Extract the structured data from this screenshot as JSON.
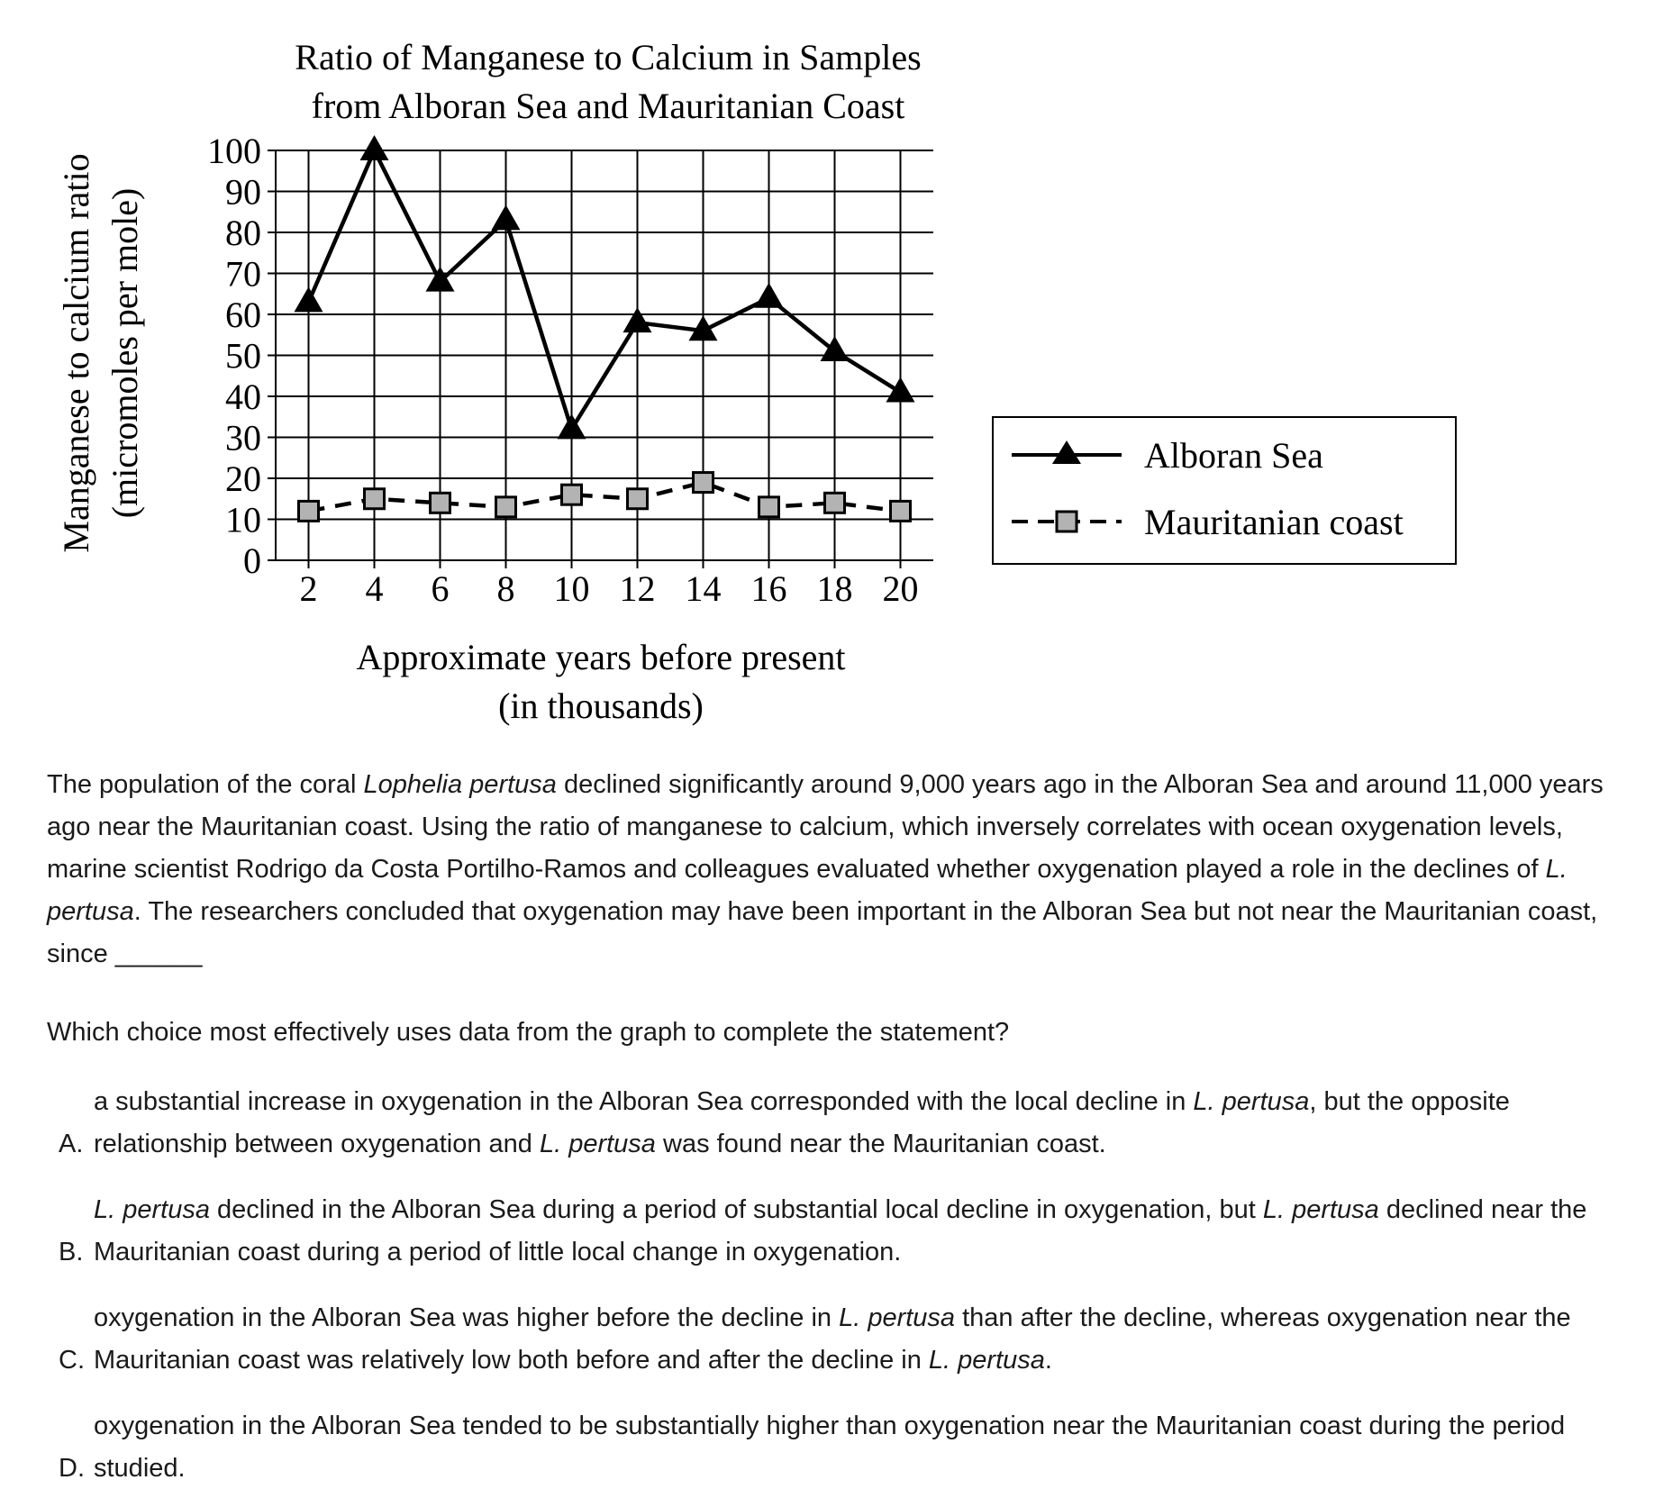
{
  "chart_data": {
    "type": "line",
    "title": [
      "Ratio of Manganese to Calcium in Samples",
      "from Alboran Sea and Mauritanian Coast"
    ],
    "xlabel": [
      "Approximate years before present",
      "(in thousands)"
    ],
    "ylabel": [
      "Manganese to calcium ratio",
      "(micromoles per mole)"
    ],
    "x": [
      2,
      4,
      6,
      8,
      10,
      12,
      14,
      16,
      18,
      20
    ],
    "xlim": [
      1,
      21
    ],
    "ylim": [
      0,
      100
    ],
    "yticks": [
      0,
      10,
      20,
      30,
      40,
      50,
      60,
      70,
      80,
      90,
      100
    ],
    "grid": true,
    "legend_position": "right",
    "series": [
      {
        "name": "Alboran Sea",
        "values": [
          63,
          100,
          68,
          83,
          32,
          58,
          56,
          64,
          51,
          41
        ],
        "line_style": "solid",
        "marker": "triangle",
        "color": "#000000"
      },
      {
        "name": "Mauritanian coast",
        "values": [
          12,
          15,
          14,
          13,
          16,
          15,
          19,
          13,
          14,
          12
        ],
        "line_style": "dashed",
        "marker": "square",
        "color": "#000000",
        "marker_fill": "#b3b3b3"
      }
    ]
  },
  "passage": {
    "before_italic": "The population of the coral ",
    "species_full": "Lophelia pertusa",
    "after_italic": " declined significantly around 9,000 years ago in the Alboran Sea and around 11,000 years ago near the Mauritanian coast. Using the ratio of manganese to calcium, which inversely correlates with ocean oxygenation levels, marine scientist Rodrigo da Costa Portilho-Ramos and colleagues evaluated whether oxygenation played a role in the declines of ",
    "species_short": "L. pertusa",
    "ending": ". The researchers concluded that oxygenation may have been important in the Alboran Sea but not near the Mauritanian coast, since ______"
  },
  "prompt": "Which choice most effectively uses data from the graph to complete the statement?",
  "choices": [
    {
      "letter": "A.",
      "parts": [
        {
          "text": "a substantial increase in oxygenation in the Alboran Sea corresponded with the local decline in ",
          "italic": false
        },
        {
          "text": "L. pertusa",
          "italic": true
        },
        {
          "text": ", but the opposite relationship between oxygenation and ",
          "italic": false
        },
        {
          "text": "L. pertusa",
          "italic": true
        },
        {
          "text": " was found near the Mauritanian coast.",
          "italic": false
        }
      ]
    },
    {
      "letter": "B.",
      "parts": [
        {
          "text": "L. pertusa",
          "italic": true
        },
        {
          "text": " declined in the Alboran Sea during a period of substantial local decline in oxygenation, but ",
          "italic": false
        },
        {
          "text": "L. pertusa",
          "italic": true
        },
        {
          "text": " declined near the Mauritanian coast during a period of little local change in oxygenation.",
          "italic": false
        }
      ]
    },
    {
      "letter": "C.",
      "parts": [
        {
          "text": "oxygenation in the Alboran Sea was higher before the decline in ",
          "italic": false
        },
        {
          "text": "L. pertusa",
          "italic": true
        },
        {
          "text": " than after the decline, whereas oxygenation near the Mauritanian coast was relatively low both before and after the decline in ",
          "italic": false
        },
        {
          "text": "L. pertusa",
          "italic": true
        },
        {
          "text": ".",
          "italic": false
        }
      ]
    },
    {
      "letter": "D.",
      "parts": [
        {
          "text": "oxygenation in the Alboran Sea tended to be substantially higher than oxygenation near the Mauritanian coast during the period studied.",
          "italic": false
        }
      ]
    }
  ]
}
